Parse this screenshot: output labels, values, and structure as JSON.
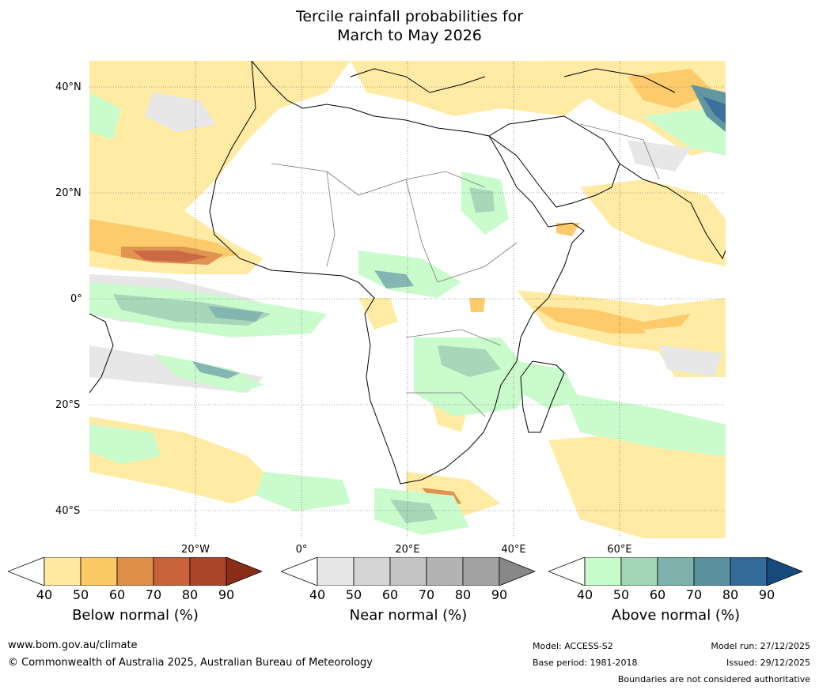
{
  "title": {
    "line1": "Tercile rainfall probabilities for",
    "line2": "March to May 2026"
  },
  "map": {
    "lat_labels": [
      "40°N",
      "20°N",
      "0°",
      "20°S",
      "40°S"
    ],
    "lon_labels": [
      "20°W",
      "0°",
      "20°E",
      "40°E",
      "60°E"
    ]
  },
  "colorbars": [
    {
      "title": "Below normal (%)",
      "ticks": [
        "40",
        "50",
        "60",
        "70",
        "80",
        "90"
      ],
      "colors": [
        "#ffffff",
        "#ffeaa0",
        "#fdc964",
        "#df8f47",
        "#c9623a",
        "#ab4528",
        "#8a2d17"
      ]
    },
    {
      "title": "Near normal (%)",
      "ticks": [
        "40",
        "50",
        "60",
        "70",
        "80",
        "90"
      ],
      "colors": [
        "#ffffff",
        "#e6e6e6",
        "#d4d4d4",
        "#c4c4c4",
        "#b3b3b3",
        "#a2a2a2",
        "#888888"
      ]
    },
    {
      "title": "Above normal (%)",
      "ticks": [
        "40",
        "50",
        "60",
        "70",
        "80",
        "90"
      ],
      "colors": [
        "#ffffff",
        "#c8fbcb",
        "#a4d4b6",
        "#7fb2ac",
        "#5a919d",
        "#336a98",
        "#174a7c"
      ]
    }
  ],
  "footer": {
    "website": "www.bom.gov.au/climate",
    "copyright": "© Commonwealth of Australia 2025, Australian Bureau of Meteorology",
    "model": "Model: ACCESS-S2",
    "base_period": "Base period: 1981-2018",
    "model_run": "Model run: 27/12/2025",
    "issued": "Issued: 29/12/2025",
    "disclaimer": "Boundaries are not considered authoritative"
  }
}
